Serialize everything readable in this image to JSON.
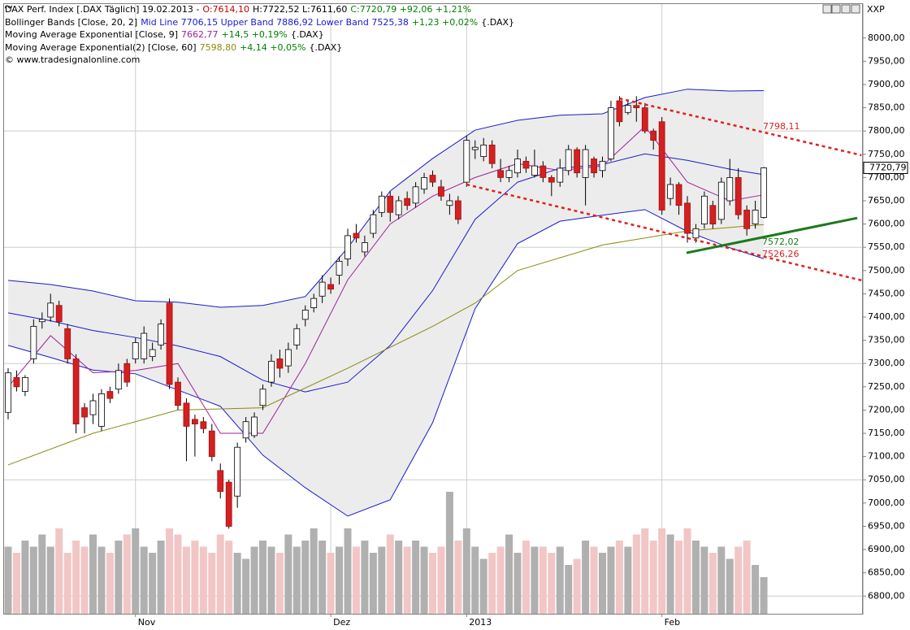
{
  "chart_data": {
    "type": "candlestick",
    "header": {
      "lines": [
        [
          {
            "text": "DAX Perf. Index [.DAX  Täglich] 19.02.2013 -",
            "color": "#000000"
          },
          {
            "text": "O:7614,10",
            "color": "#c00000"
          },
          {
            "text": "H:7722,52 L:7611,60",
            "color": "#000000"
          },
          {
            "text": "C:7720,79 +92,06 +1,21%",
            "color": "#008000"
          }
        ],
        [
          {
            "text": "Bollinger Bands [Close, 20, 2]",
            "color": "#000000"
          },
          {
            "text": "Mid Line 7706,15 Upper Band 7886,92 Lower Band 7525,38",
            "color": "#1a1acc"
          },
          {
            "text": "+1,23 +0,02%",
            "color": "#008000"
          },
          {
            "text": "{.DAX}",
            "color": "#000000"
          }
        ],
        [
          {
            "text": "Moving Average Exponential [Close, 9]",
            "color": "#000000"
          },
          {
            "text": "7662,77",
            "color": "#a0209a"
          },
          {
            "text": "+14,5 +0,19%",
            "color": "#008000"
          },
          {
            "text": "{.DAX}",
            "color": "#000000"
          }
        ],
        [
          {
            "text": "Moving Average Exponential(2) [Close, 60]",
            "color": "#000000"
          },
          {
            "text": "7598,80",
            "color": "#8a8a10"
          },
          {
            "text": "+4,14 +0,05%",
            "color": "#008000"
          },
          {
            "text": "{.DAX}",
            "color": "#000000"
          }
        ],
        [
          {
            "text": "© www.tradesignalonline.com",
            "color": "#000000"
          }
        ]
      ]
    },
    "corner_label": "XXP",
    "last_price_label": "7720,79",
    "categories": [
      null,
      null,
      null,
      null,
      null,
      null,
      null,
      null,
      null,
      null,
      null,
      null,
      null,
      null,
      null,
      "Nov",
      null,
      null,
      null,
      null,
      null,
      null,
      null,
      null,
      null,
      null,
      null,
      null,
      null,
      null,
      null,
      null,
      null,
      null,
      null,
      null,
      null,
      null,
      "Dez",
      null,
      null,
      null,
      null,
      null,
      null,
      null,
      null,
      null,
      null,
      null,
      null,
      null,
      null,
      null,
      "2013",
      null,
      null,
      null,
      null,
      null,
      null,
      null,
      null,
      null,
      null,
      null,
      null,
      null,
      null,
      null,
      null,
      null,
      null,
      null,
      null,
      null,
      null,
      "Feb",
      null,
      null,
      null,
      null,
      null,
      null,
      null,
      null,
      null,
      null,
      null,
      null
    ],
    "ohlc": [
      [
        7195,
        7290,
        7180,
        7280
      ],
      [
        7270,
        7285,
        7240,
        7250
      ],
      [
        7240,
        7275,
        7230,
        7270
      ],
      [
        7310,
        7395,
        7300,
        7380
      ],
      [
        7390,
        7410,
        7375,
        7395
      ],
      [
        7400,
        7450,
        7390,
        7430
      ],
      [
        7425,
        7435,
        7380,
        7390
      ],
      [
        7375,
        7385,
        7300,
        7310
      ],
      [
        7310,
        7320,
        7150,
        7170
      ],
      [
        7205,
        7215,
        7150,
        7185
      ],
      [
        7190,
        7235,
        7170,
        7220
      ],
      [
        7165,
        7245,
        7155,
        7235
      ],
      [
        7240,
        7250,
        7215,
        7225
      ],
      [
        7245,
        7300,
        7235,
        7285
      ],
      [
        7300,
        7310,
        7250,
        7260
      ],
      [
        7310,
        7355,
        7300,
        7345
      ],
      [
        7310,
        7380,
        7300,
        7365
      ],
      [
        7315,
        7345,
        7305,
        7330
      ],
      [
        7340,
        7395,
        7330,
        7385
      ],
      [
        7430,
        7440,
        7245,
        7255
      ],
      [
        7260,
        7270,
        7200,
        7210
      ],
      [
        7215,
        7225,
        7090,
        7165
      ],
      [
        7180,
        7190,
        7100,
        7170
      ],
      [
        7175,
        7185,
        7150,
        7160
      ],
      [
        7155,
        7170,
        7090,
        7100
      ],
      [
        7070,
        7085,
        7010,
        7025
      ],
      [
        7045,
        7050,
        6945,
        6950
      ],
      [
        7015,
        7130,
        6990,
        7120
      ],
      [
        7140,
        7185,
        7130,
        7175
      ],
      [
        7145,
        7195,
        7140,
        7185
      ],
      [
        7210,
        7255,
        7200,
        7245
      ],
      [
        7260,
        7320,
        7250,
        7305
      ],
      [
        7310,
        7330,
        7270,
        7290
      ],
      [
        7295,
        7345,
        7280,
        7330
      ],
      [
        7340,
        7385,
        7330,
        7375
      ],
      [
        7395,
        7425,
        7380,
        7415
      ],
      [
        7420,
        7450,
        7410,
        7440
      ],
      [
        7445,
        7490,
        7430,
        7475
      ],
      [
        7470,
        7485,
        7450,
        7460
      ],
      [
        7490,
        7530,
        7470,
        7520
      ],
      [
        7525,
        7590,
        7510,
        7575
      ],
      [
        7580,
        7600,
        7560,
        7570
      ],
      [
        7540,
        7575,
        7530,
        7560
      ],
      [
        7580,
        7630,
        7570,
        7620
      ],
      [
        7625,
        7670,
        7615,
        7660
      ],
      [
        7660,
        7670,
        7605,
        7625
      ],
      [
        7620,
        7660,
        7610,
        7650
      ],
      [
        7655,
        7670,
        7630,
        7640
      ],
      [
        7645,
        7690,
        7635,
        7680
      ],
      [
        7675,
        7710,
        7665,
        7700
      ],
      [
        7705,
        7715,
        7680,
        7690
      ],
      [
        7680,
        7695,
        7650,
        7660
      ],
      [
        7640,
        7665,
        7620,
        7650
      ],
      [
        7650,
        7660,
        7600,
        7610
      ],
      [
        7690,
        7790,
        7680,
        7780
      ],
      [
        7760,
        7780,
        7740,
        7765
      ],
      [
        7745,
        7785,
        7735,
        7770
      ],
      [
        7770,
        7780,
        7720,
        7730
      ],
      [
        7715,
        7740,
        7690,
        7700
      ],
      [
        7700,
        7725,
        7690,
        7715
      ],
      [
        7710,
        7760,
        7700,
        7740
      ],
      [
        7735,
        7745,
        7710,
        7720
      ],
      [
        7705,
        7760,
        7700,
        7725
      ],
      [
        7725,
        7735,
        7690,
        7700
      ],
      [
        7700,
        7705,
        7660,
        7690
      ],
      [
        7690,
        7740,
        7680,
        7720
      ],
      [
        7715,
        7770,
        7705,
        7760
      ],
      [
        7760,
        7765,
        7700,
        7710
      ],
      [
        7700,
        7770,
        7640,
        7760
      ],
      [
        7740,
        7745,
        7700,
        7710
      ],
      [
        7715,
        7745,
        7700,
        7735
      ],
      [
        7740,
        7865,
        7735,
        7850
      ],
      [
        7865,
        7875,
        7810,
        7820
      ],
      [
        7840,
        7865,
        7835,
        7855
      ],
      [
        7855,
        7875,
        7820,
        7850
      ],
      [
        7850,
        7860,
        7795,
        7800
      ],
      [
        7800,
        7805,
        7760,
        7780
      ],
      [
        7820,
        7830,
        7620,
        7630
      ],
      [
        7655,
        7700,
        7640,
        7685
      ],
      [
        7685,
        7690,
        7620,
        7640
      ],
      [
        7645,
        7660,
        7560,
        7580
      ],
      [
        7570,
        7600,
        7560,
        7590
      ],
      [
        7600,
        7670,
        7590,
        7660
      ],
      [
        7640,
        7650,
        7590,
        7600
      ],
      [
        7610,
        7700,
        7600,
        7690
      ],
      [
        7650,
        7740,
        7640,
        7700
      ],
      [
        7700,
        7720,
        7610,
        7620
      ],
      [
        7630,
        7640,
        7575,
        7590
      ],
      [
        7600,
        7650,
        7590,
        7630
      ],
      [
        7614.1,
        7722.52,
        7611.6,
        7720.79
      ]
    ],
    "up_color": "#ffffff",
    "down_color": "#d42020",
    "series": [
      {
        "color": "#1a1acc",
        "x": [
          0,
          5,
          10,
          15,
          20,
          25,
          30,
          35,
          40,
          45,
          50,
          55,
          60,
          65,
          70,
          75,
          80,
          85,
          89
        ],
        "values": [
          7479,
          7470,
          7456,
          7435,
          7432,
          7421,
          7425,
          7444,
          7549,
          7671,
          7741,
          7802,
          7823,
          7834,
          7837,
          7872,
          7890,
          7886,
          7886.92
        ]
      },
      {
        "color": "#1a1acc",
        "x": [
          0,
          5,
          10,
          15,
          20,
          25,
          30,
          35,
          40,
          45,
          50,
          55,
          60,
          65,
          70,
          75,
          80,
          85,
          89
        ],
        "values": [
          7409,
          7392,
          7371,
          7356,
          7338,
          7315,
          7264,
          7239,
          7260,
          7339,
          7457,
          7610,
          7690,
          7720,
          7728,
          7751,
          7737,
          7718,
          7706.15
        ]
      },
      {
        "color": "#1a1acc",
        "x": [
          0,
          5,
          10,
          15,
          20,
          25,
          30,
          35,
          40,
          45,
          50,
          55,
          60,
          65,
          70,
          75,
          80,
          85,
          89
        ],
        "values": [
          7339,
          7313,
          7286,
          7278,
          7243,
          7208,
          7103,
          7033,
          6972,
          7007,
          7173,
          7418,
          7558,
          7606,
          7619,
          7631,
          7584,
          7549,
          7525.38
        ]
      },
      {
        "color": "#a0209a",
        "x": [
          0,
          5,
          10,
          15,
          20,
          25,
          30,
          35,
          40,
          45,
          50,
          55,
          60,
          65,
          70,
          75,
          80,
          85,
          89
        ],
        "values": [
          7250,
          7360,
          7280,
          7285,
          7300,
          7150,
          7150,
          7300,
          7480,
          7600,
          7660,
          7700,
          7730,
          7715,
          7725,
          7810,
          7690,
          7650,
          7662.77
        ]
      },
      {
        "color": "#8a8a10",
        "x": [
          0,
          10,
          20,
          30,
          40,
          50,
          55,
          60,
          70,
          80,
          89
        ],
        "values": [
          7082,
          7150,
          7200,
          7205,
          7290,
          7380,
          7430,
          7500,
          7555,
          7585,
          7598.8
        ]
      }
    ],
    "band_fill": "#ececec",
    "volume": {
      "values": [
        11,
        10,
        12,
        11,
        13,
        11,
        14,
        10,
        12,
        11,
        13,
        11,
        10,
        12,
        13,
        14,
        11,
        10,
        12,
        14,
        13,
        11,
        12,
        11,
        10,
        13,
        12,
        10,
        9,
        11,
        12,
        11,
        10,
        13,
        11,
        12,
        14,
        12,
        10,
        11,
        14,
        11,
        12,
        10,
        11,
        13,
        12,
        11,
        12,
        11,
        10,
        11,
        20,
        12,
        14,
        11,
        9,
        10,
        11,
        13,
        10,
        12,
        11,
        11,
        10,
        11,
        8,
        9,
        12,
        11,
        10,
        11,
        12,
        11,
        13,
        14,
        12,
        14,
        13,
        12,
        14,
        12,
        11,
        10,
        11,
        9,
        11,
        12,
        8,
        6
      ],
      "up_color": "#b0b0b0",
      "down_color": "#f2c6c6"
    },
    "y2lim": [
      0,
      100
    ],
    "trendlines": [
      {
        "color": "#e02020",
        "dashed": true,
        "x": [
          72,
          100.5
        ],
        "values": [
          7870,
          7748
        ]
      },
      {
        "color": "#e02020",
        "dashed": true,
        "x": [
          54,
          100.5
        ],
        "values": [
          7685,
          7479
        ]
      },
      {
        "color": "#1a7a1a",
        "dashed": false,
        "x": [
          79.9,
          100
        ],
        "values": [
          7538,
          7613
        ]
      }
    ],
    "annotations": [
      {
        "text": "7798,11",
        "color": "#e02020"
      },
      {
        "text": "7572,02",
        "color": "#1a7a1a"
      },
      {
        "text": "7526,26",
        "color": "#e02020"
      }
    ],
    "ylim": [
      6762,
      8073
    ],
    "yticks": [
      {
        "value": 6800,
        "label": "6800,00"
      },
      {
        "value": 6850,
        "label": "6850,00"
      },
      {
        "value": 6900,
        "label": "6900,00"
      },
      {
        "value": 6950,
        "label": "6950,00"
      },
      {
        "value": 7000,
        "label": "7000,00"
      },
      {
        "value": 7050,
        "label": "7050,00"
      },
      {
        "value": 7100,
        "label": "7100,00"
      },
      {
        "value": 7150,
        "label": "7150,00"
      },
      {
        "value": 7200,
        "label": "7200,00"
      },
      {
        "value": 7250,
        "label": "7250,00"
      },
      {
        "value": 7300,
        "label": "7300,00"
      },
      {
        "value": 7350,
        "label": "7350,00"
      },
      {
        "value": 7400,
        "label": "7400,00"
      },
      {
        "value": 7450,
        "label": "7450,00"
      },
      {
        "value": 7500,
        "label": "7500,00"
      },
      {
        "value": 7550,
        "label": "7550,00"
      },
      {
        "value": 7600,
        "label": "7600,00"
      },
      {
        "value": 7650,
        "label": "7650,00"
      },
      {
        "value": 7700,
        "label": "7700,00"
      },
      {
        "value": 7750,
        "label": "7750,00"
      },
      {
        "value": 7800,
        "label": "7800,00"
      },
      {
        "value": 7850,
        "label": "7850,00"
      },
      {
        "value": 7900,
        "label": "7900,00"
      },
      {
        "value": 7950,
        "label": "7950,00"
      },
      {
        "value": 8000,
        "label": "8000,00"
      }
    ],
    "grid": true
  }
}
